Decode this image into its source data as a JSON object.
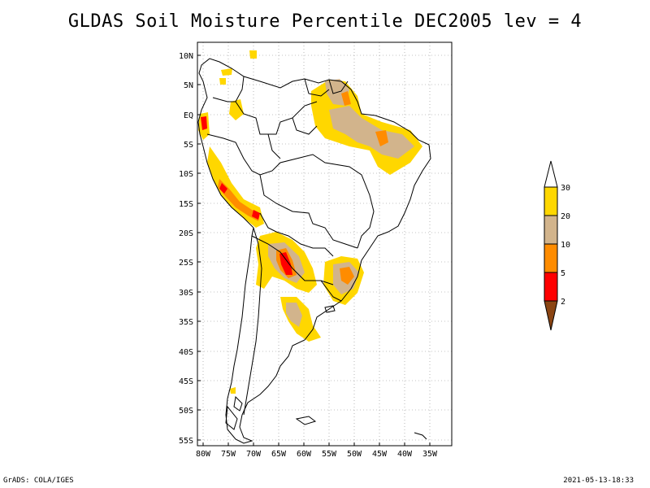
{
  "title": "GLDAS Soil Moisture Percentile DEC2005 lev = 4",
  "footer": {
    "left": "GrADS: COLA/IGES",
    "right": "2021-05-13-18:33"
  },
  "map": {
    "lat_labels": [
      "10N",
      "5N",
      "EQ",
      "5S",
      "10S",
      "15S",
      "20S",
      "25S",
      "30S",
      "35S",
      "40S",
      "45S",
      "50S",
      "55S"
    ],
    "lon_labels": [
      "80W",
      "75W",
      "70W",
      "65W",
      "60W",
      "55W",
      "50W",
      "45W",
      "40W",
      "35W"
    ],
    "extent": {
      "lon_min": -81,
      "lon_max": -33,
      "lat_min": -56,
      "lat_max": 12
    },
    "grid": true
  },
  "legend": {
    "labels": [
      "30",
      "20",
      "10",
      "5",
      "2"
    ],
    "colors": {
      "above_30": "#ffffff",
      "c20_30": "#ffd700",
      "c10_20": "#d2b48c",
      "c5_10": "#ff8c00",
      "c2_5": "#ff0000",
      "below_2": "#8b4513"
    }
  }
}
